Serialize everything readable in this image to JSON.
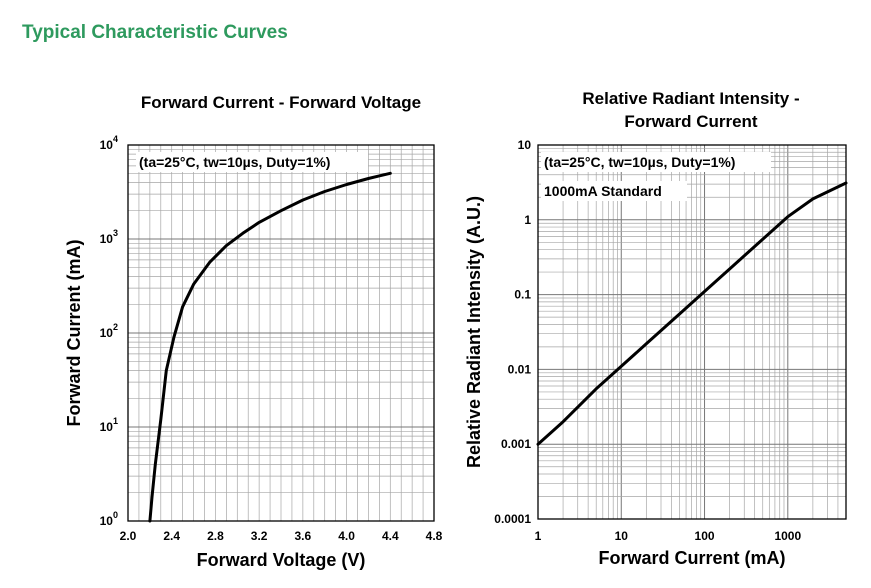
{
  "page": {
    "section_title": "Typical Characteristic Curves"
  },
  "colors": {
    "section_title": "#2e9a5e",
    "grid": "#a6a6a6",
    "curve": "#000000"
  },
  "chart_data": [
    {
      "type": "line",
      "title": "Forward Current - Forward Voltage",
      "xlabel": "Forward Voltage (V)",
      "ylabel": "Forward Current (mA)",
      "x_scale": "linear",
      "y_scale": "log",
      "xlim": [
        2.0,
        4.8
      ],
      "ylim": [
        1,
        10000
      ],
      "x_ticks": [
        "2.0",
        "2.4",
        "2.8",
        "3.2",
        "3.6",
        "4.0",
        "4.4",
        "4.8"
      ],
      "y_ticks": [
        {
          "base": "10",
          "exp": "0"
        },
        {
          "base": "10",
          "exp": "1"
        },
        {
          "base": "10",
          "exp": "2"
        },
        {
          "base": "10",
          "exp": "3"
        },
        {
          "base": "10",
          "exp": "4"
        }
      ],
      "annotation": "(ta=25°C, tw=10µs, Duty=1%)",
      "grid": true,
      "series": [
        {
          "x": [
            2.2,
            2.22,
            2.25,
            2.3,
            2.35,
            2.42,
            2.5,
            2.6,
            2.75,
            2.9,
            3.05,
            3.2,
            3.4,
            3.6,
            3.8,
            4.0,
            4.2,
            4.4
          ],
          "y": [
            1,
            1.8,
            4,
            12,
            40,
            90,
            190,
            330,
            570,
            850,
            1150,
            1500,
            2000,
            2600,
            3200,
            3800,
            4400,
            5000
          ]
        }
      ]
    },
    {
      "type": "line",
      "title": [
        "Relative Radiant Intensity -",
        "Forward Current"
      ],
      "xlabel": "Forward Current (mA)",
      "ylabel": "Relative Radiant Intensity (A.U.)",
      "x_scale": "log",
      "y_scale": "log",
      "xlim": [
        1,
        5000
      ],
      "ylim": [
        0.0001,
        10
      ],
      "x_ticks": [
        "1",
        "10",
        "100",
        "1000"
      ],
      "y_ticks": [
        "0.0001",
        "0.001",
        "0.01",
        "0.1",
        "1",
        "10"
      ],
      "annotations": [
        "(ta=25°C, tw=10µs, Duty=1%)",
        "1000mA Standard"
      ],
      "grid": true,
      "series": [
        {
          "x": [
            1,
            2,
            5,
            10,
            20,
            50,
            100,
            200,
            500,
            1000,
            2000,
            5000
          ],
          "y": [
            0.001,
            0.002,
            0.0055,
            0.011,
            0.022,
            0.055,
            0.11,
            0.22,
            0.55,
            1.1,
            1.9,
            3.1
          ]
        }
      ]
    }
  ]
}
